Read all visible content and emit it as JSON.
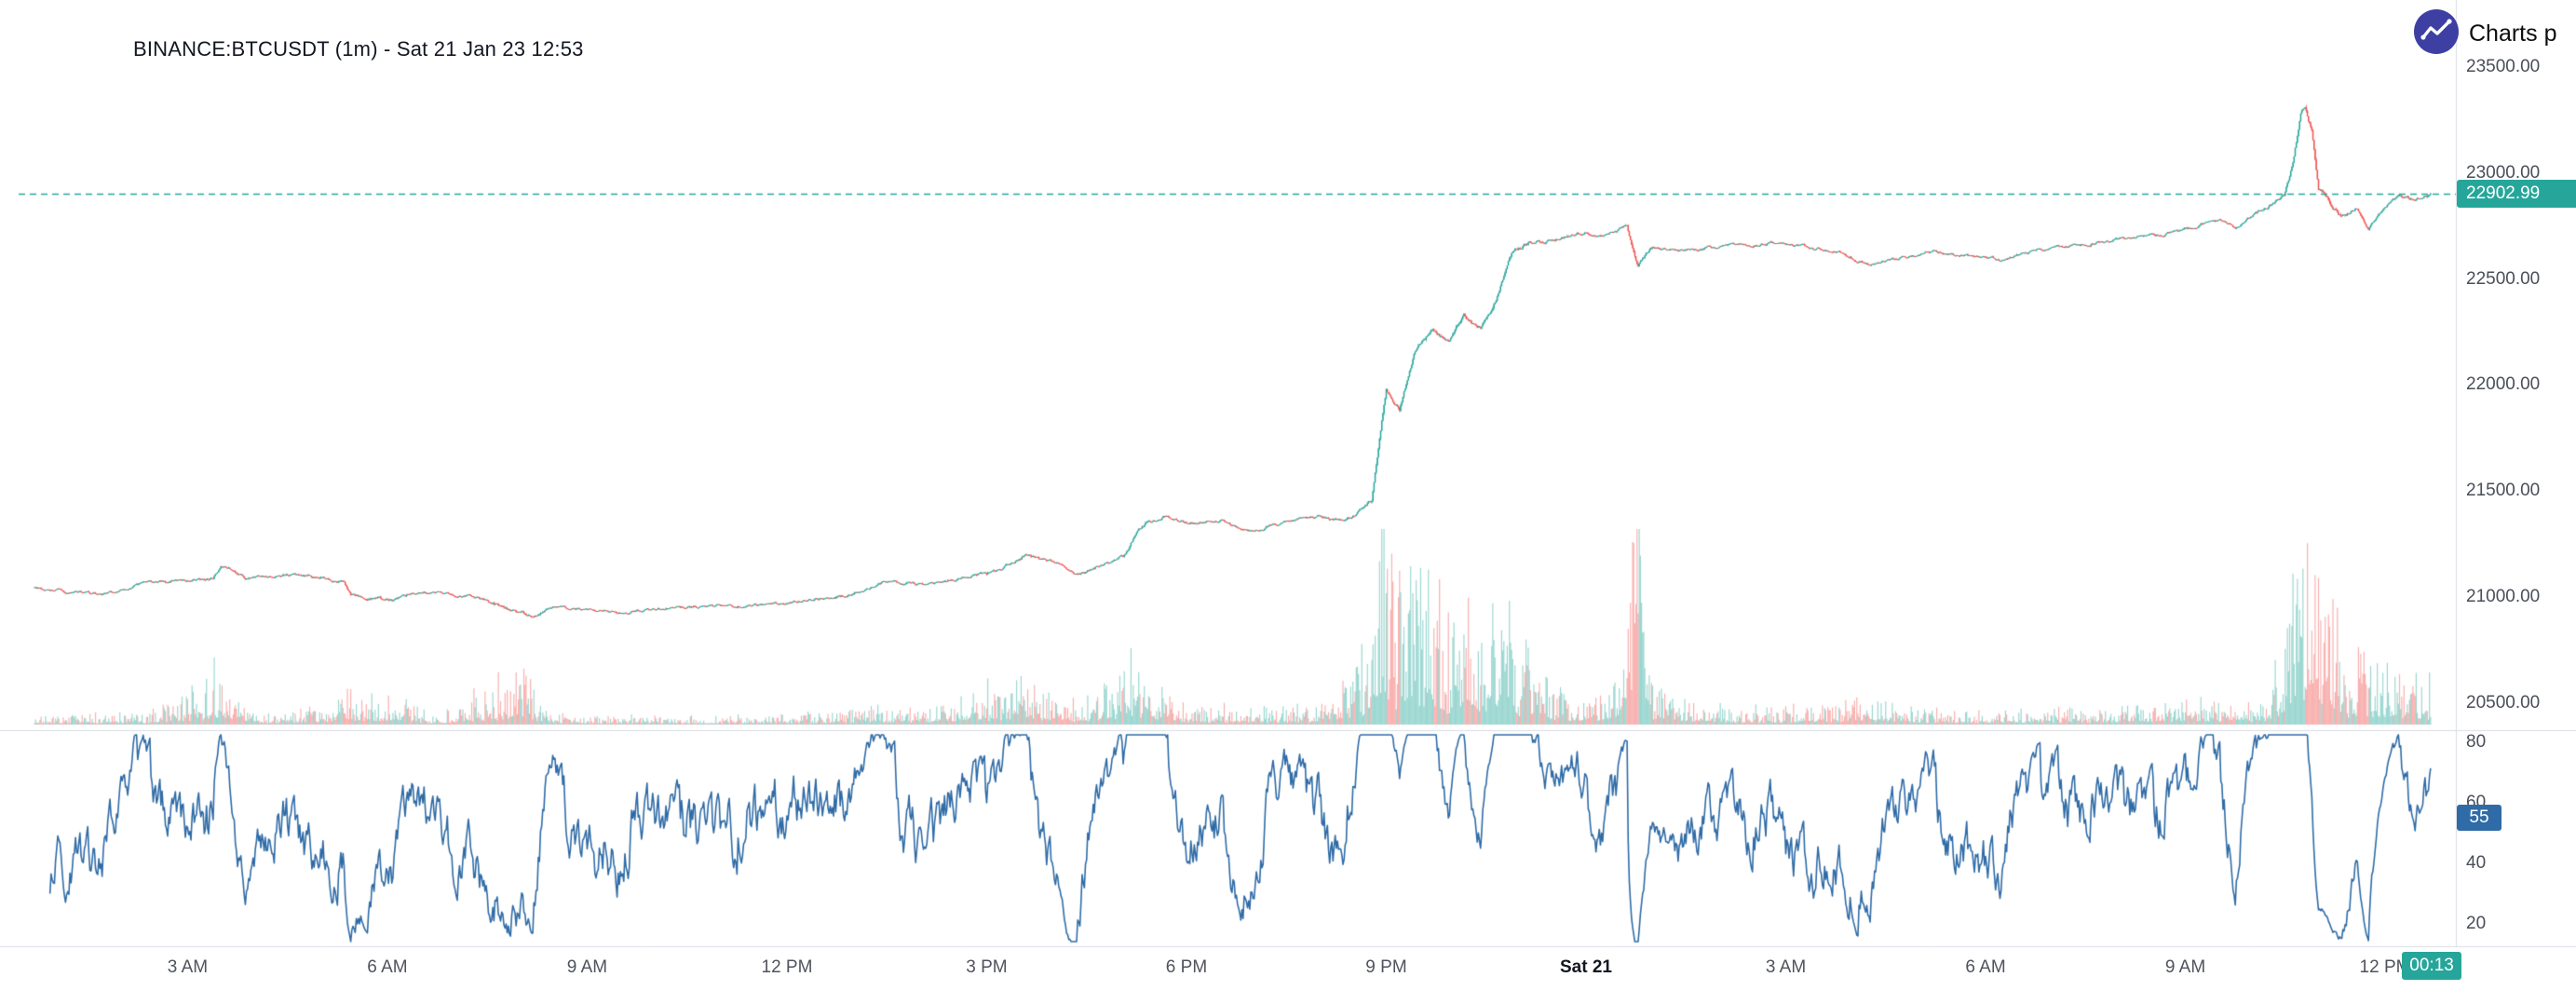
{
  "brand": {
    "name": "Charts p",
    "icon": "chart-line-icon",
    "icon_bg": "#3d3fa3"
  },
  "chart_data": {
    "type": "candlestick",
    "title": "BINANCE:BTCUSDT (1m) - Sat 21 Jan 23 12:53",
    "symbol": "BINANCE:BTCUSDT",
    "interval": "1m",
    "last_price": 22902.99,
    "last_price_label": "22902.99",
    "countdown": "00:13",
    "rsi_last": 55,
    "rsi_last_label": "55",
    "price_axis_ticks": [
      23500,
      23000,
      22500,
      22000,
      21500,
      21000,
      20500
    ],
    "rsi_axis_ticks": [
      80,
      60,
      40,
      20
    ],
    "time_axis": [
      {
        "label": "3 AM",
        "min": 138
      },
      {
        "label": "6 AM",
        "min": 318
      },
      {
        "label": "9 AM",
        "min": 498
      },
      {
        "label": "12 PM",
        "min": 678
      },
      {
        "label": "3 PM",
        "min": 858
      },
      {
        "label": "6 PM",
        "min": 1038
      },
      {
        "label": "9 PM",
        "min": 1218
      },
      {
        "label": "Sat 21",
        "min": 1398,
        "emphasis": true
      },
      {
        "label": "3 AM",
        "min": 1578
      },
      {
        "label": "6 AM",
        "min": 1758
      },
      {
        "label": "9 AM",
        "min": 1938
      },
      {
        "label": "12 PM",
        "min": 2118
      }
    ],
    "total_minutes": 2160,
    "price_anchors": [
      [
        0,
        21043
      ],
      [
        59,
        21012
      ],
      [
        102,
        21066
      ],
      [
        161,
        21090
      ],
      [
        168,
        21145
      ],
      [
        190,
        21090
      ],
      [
        227,
        21105
      ],
      [
        278,
        21080
      ],
      [
        285,
        21009
      ],
      [
        322,
        20986
      ],
      [
        351,
        21025
      ],
      [
        395,
        21000
      ],
      [
        446,
        20907
      ],
      [
        468,
        20953
      ],
      [
        527,
        20930
      ],
      [
        585,
        20950
      ],
      [
        659,
        20965
      ],
      [
        732,
        21005
      ],
      [
        769,
        21080
      ],
      [
        805,
        21055
      ],
      [
        864,
        21118
      ],
      [
        893,
        21195
      ],
      [
        922,
        21155
      ],
      [
        937,
        21100
      ],
      [
        981,
        21190
      ],
      [
        995,
        21330
      ],
      [
        1017,
        21385
      ],
      [
        1039,
        21345
      ],
      [
        1069,
        21360
      ],
      [
        1098,
        21306
      ],
      [
        1127,
        21360
      ],
      [
        1157,
        21380
      ],
      [
        1179,
        21360
      ],
      [
        1198,
        21420
      ],
      [
        1205,
        21450
      ],
      [
        1218,
        21980
      ],
      [
        1230,
        21890
      ],
      [
        1244,
        22160
      ],
      [
        1259,
        22280
      ],
      [
        1274,
        22200
      ],
      [
        1288,
        22320
      ],
      [
        1303,
        22270
      ],
      [
        1317,
        22400
      ],
      [
        1332,
        22630
      ],
      [
        1347,
        22670
      ],
      [
        1369,
        22680
      ],
      [
        1391,
        22720
      ],
      [
        1413,
        22705
      ],
      [
        1435,
        22745
      ],
      [
        1445,
        22560
      ],
      [
        1456,
        22650
      ],
      [
        1479,
        22630
      ],
      [
        1508,
        22650
      ],
      [
        1566,
        22670
      ],
      [
        1625,
        22630
      ],
      [
        1654,
        22570
      ],
      [
        1683,
        22600
      ],
      [
        1713,
        22630
      ],
      [
        1771,
        22590
      ],
      [
        1800,
        22630
      ],
      [
        1859,
        22670
      ],
      [
        1918,
        22710
      ],
      [
        1954,
        22760
      ],
      [
        1969,
        22780
      ],
      [
        1983,
        22750
      ],
      [
        2013,
        22840
      ],
      [
        2027,
        22900
      ],
      [
        2035,
        23050
      ],
      [
        2042,
        23280
      ],
      [
        2046,
        23320
      ],
      [
        2052,
        23200
      ],
      [
        2058,
        22930
      ],
      [
        2067,
        22870
      ],
      [
        2079,
        22790
      ],
      [
        2093,
        22825
      ],
      [
        2103,
        22740
      ],
      [
        2115,
        22825
      ],
      [
        2130,
        22885
      ],
      [
        2145,
        22870
      ],
      [
        2160,
        22903
      ]
    ],
    "volume_envelope": [
      [
        0,
        0.06
      ],
      [
        100,
        0.08
      ],
      [
        160,
        0.28
      ],
      [
        200,
        0.07
      ],
      [
        320,
        0.18
      ],
      [
        360,
        0.06
      ],
      [
        440,
        0.32
      ],
      [
        470,
        0.08
      ],
      [
        520,
        0.06
      ],
      [
        600,
        0.05
      ],
      [
        700,
        0.07
      ],
      [
        760,
        0.12
      ],
      [
        800,
        0.1
      ],
      [
        860,
        0.22
      ],
      [
        900,
        0.28
      ],
      [
        940,
        0.12
      ],
      [
        980,
        0.3
      ],
      [
        1000,
        0.35
      ],
      [
        1040,
        0.12
      ],
      [
        1100,
        0.1
      ],
      [
        1160,
        0.12
      ],
      [
        1200,
        0.45
      ],
      [
        1215,
        0.85
      ],
      [
        1235,
        0.6
      ],
      [
        1250,
        0.9
      ],
      [
        1270,
        0.5
      ],
      [
        1290,
        0.55
      ],
      [
        1310,
        0.45
      ],
      [
        1335,
        0.5
      ],
      [
        1360,
        0.25
      ],
      [
        1400,
        0.18
      ],
      [
        1430,
        0.3
      ],
      [
        1445,
        0.8
      ],
      [
        1460,
        0.25
      ],
      [
        1500,
        0.12
      ],
      [
        1560,
        0.1
      ],
      [
        1620,
        0.12
      ],
      [
        1655,
        0.18
      ],
      [
        1700,
        0.1
      ],
      [
        1760,
        0.08
      ],
      [
        1800,
        0.1
      ],
      [
        1860,
        0.1
      ],
      [
        1900,
        0.12
      ],
      [
        1940,
        0.15
      ],
      [
        1980,
        0.12
      ],
      [
        2010,
        0.2
      ],
      [
        2030,
        0.45
      ],
      [
        2040,
        0.75
      ],
      [
        2048,
        0.9
      ],
      [
        2058,
        1.0
      ],
      [
        2070,
        0.55
      ],
      [
        2085,
        0.35
      ],
      [
        2100,
        0.25
      ],
      [
        2120,
        0.3
      ],
      [
        2140,
        0.35
      ],
      [
        2155,
        0.3
      ]
    ],
    "colors": {
      "up": "#26a69a",
      "down": "#ef5350",
      "volume_up": "rgba(38,166,154,0.45)",
      "volume_down": "rgba(239,83,80,0.45)",
      "price_line": "#26a69a",
      "price_badge": "#26a69a",
      "countdown_badge": "#26a69a",
      "rsi_line": "#2f6ba6",
      "rsi_badge": "#2f6ba6",
      "axis_text": "#4a4e59",
      "time_text": "#50535e",
      "emphasis_text": "#131722",
      "grid_line": "#d9dce3",
      "title_text": "#131722"
    }
  }
}
